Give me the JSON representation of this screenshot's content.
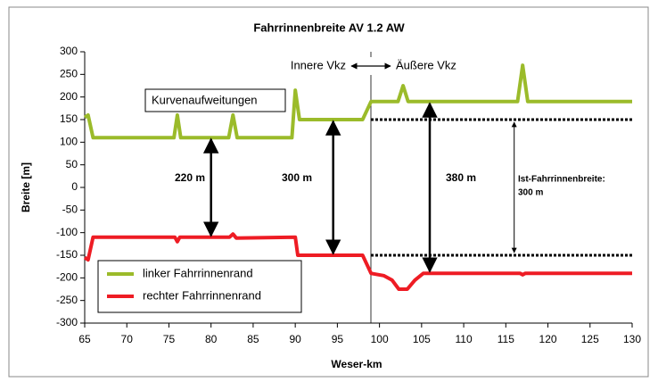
{
  "chart_data": {
    "type": "line",
    "title": "Fahrrinnenbreite AV 1.2 AW",
    "x_label": "Weser-km",
    "y_label": "Breite [m]",
    "xlim": [
      65,
      130
    ],
    "xticks": [
      65,
      70,
      75,
      80,
      85,
      90,
      95,
      100,
      105,
      110,
      115,
      120,
      125,
      130
    ],
    "ylim": [
      -300,
      300
    ],
    "yticks": [
      -300,
      -250,
      -200,
      -150,
      -100,
      -50,
      0,
      50,
      100,
      150,
      200,
      250,
      300
    ],
    "legend": "lower left",
    "series": [
      {
        "name": "linker Fahrrinnenrand",
        "color": "#9bbb2a",
        "x": [
          65,
          65.4,
          66,
          75.6,
          76,
          76.4,
          82.1,
          82.6,
          83.1,
          89.6,
          90,
          90.5,
          98,
          99,
          102.2,
          102.8,
          103.4,
          116.4,
          117,
          117.6,
          130
        ],
        "values": [
          155,
          160,
          110,
          110,
          160,
          110,
          110,
          160,
          110,
          110,
          215,
          150,
          150,
          190,
          190,
          225,
          190,
          190,
          270,
          190,
          190
        ]
      },
      {
        "name": "rechter Fahrrinnenrand",
        "color": "#ee1c24",
        "x": [
          65,
          65.4,
          66,
          75.7,
          76,
          76.3,
          82.2,
          82.6,
          83,
          90,
          90.3,
          98,
          99,
          100.5,
          101.5,
          102.3,
          103.3,
          104.2,
          105.2,
          116.7,
          117,
          117.3,
          130
        ],
        "values": [
          -155,
          -160,
          -110,
          -110,
          -120,
          -110,
          -110,
          -103,
          -112,
          -110,
          -150,
          -150,
          -190,
          -195,
          -205,
          -225,
          -225,
          -205,
          -190,
          -190,
          -193,
          -190,
          -190
        ]
      }
    ],
    "annotations": {
      "inner": "Innere Vkz",
      "outer": "Äußere Vkz",
      "curves": "Kurvenaufweitungen",
      "w220": "220 m",
      "w300": "300 m",
      "w380": "380 m",
      "ist": "Ist-Fahrrinnenbreite:",
      "ist_value": "300 m"
    }
  }
}
